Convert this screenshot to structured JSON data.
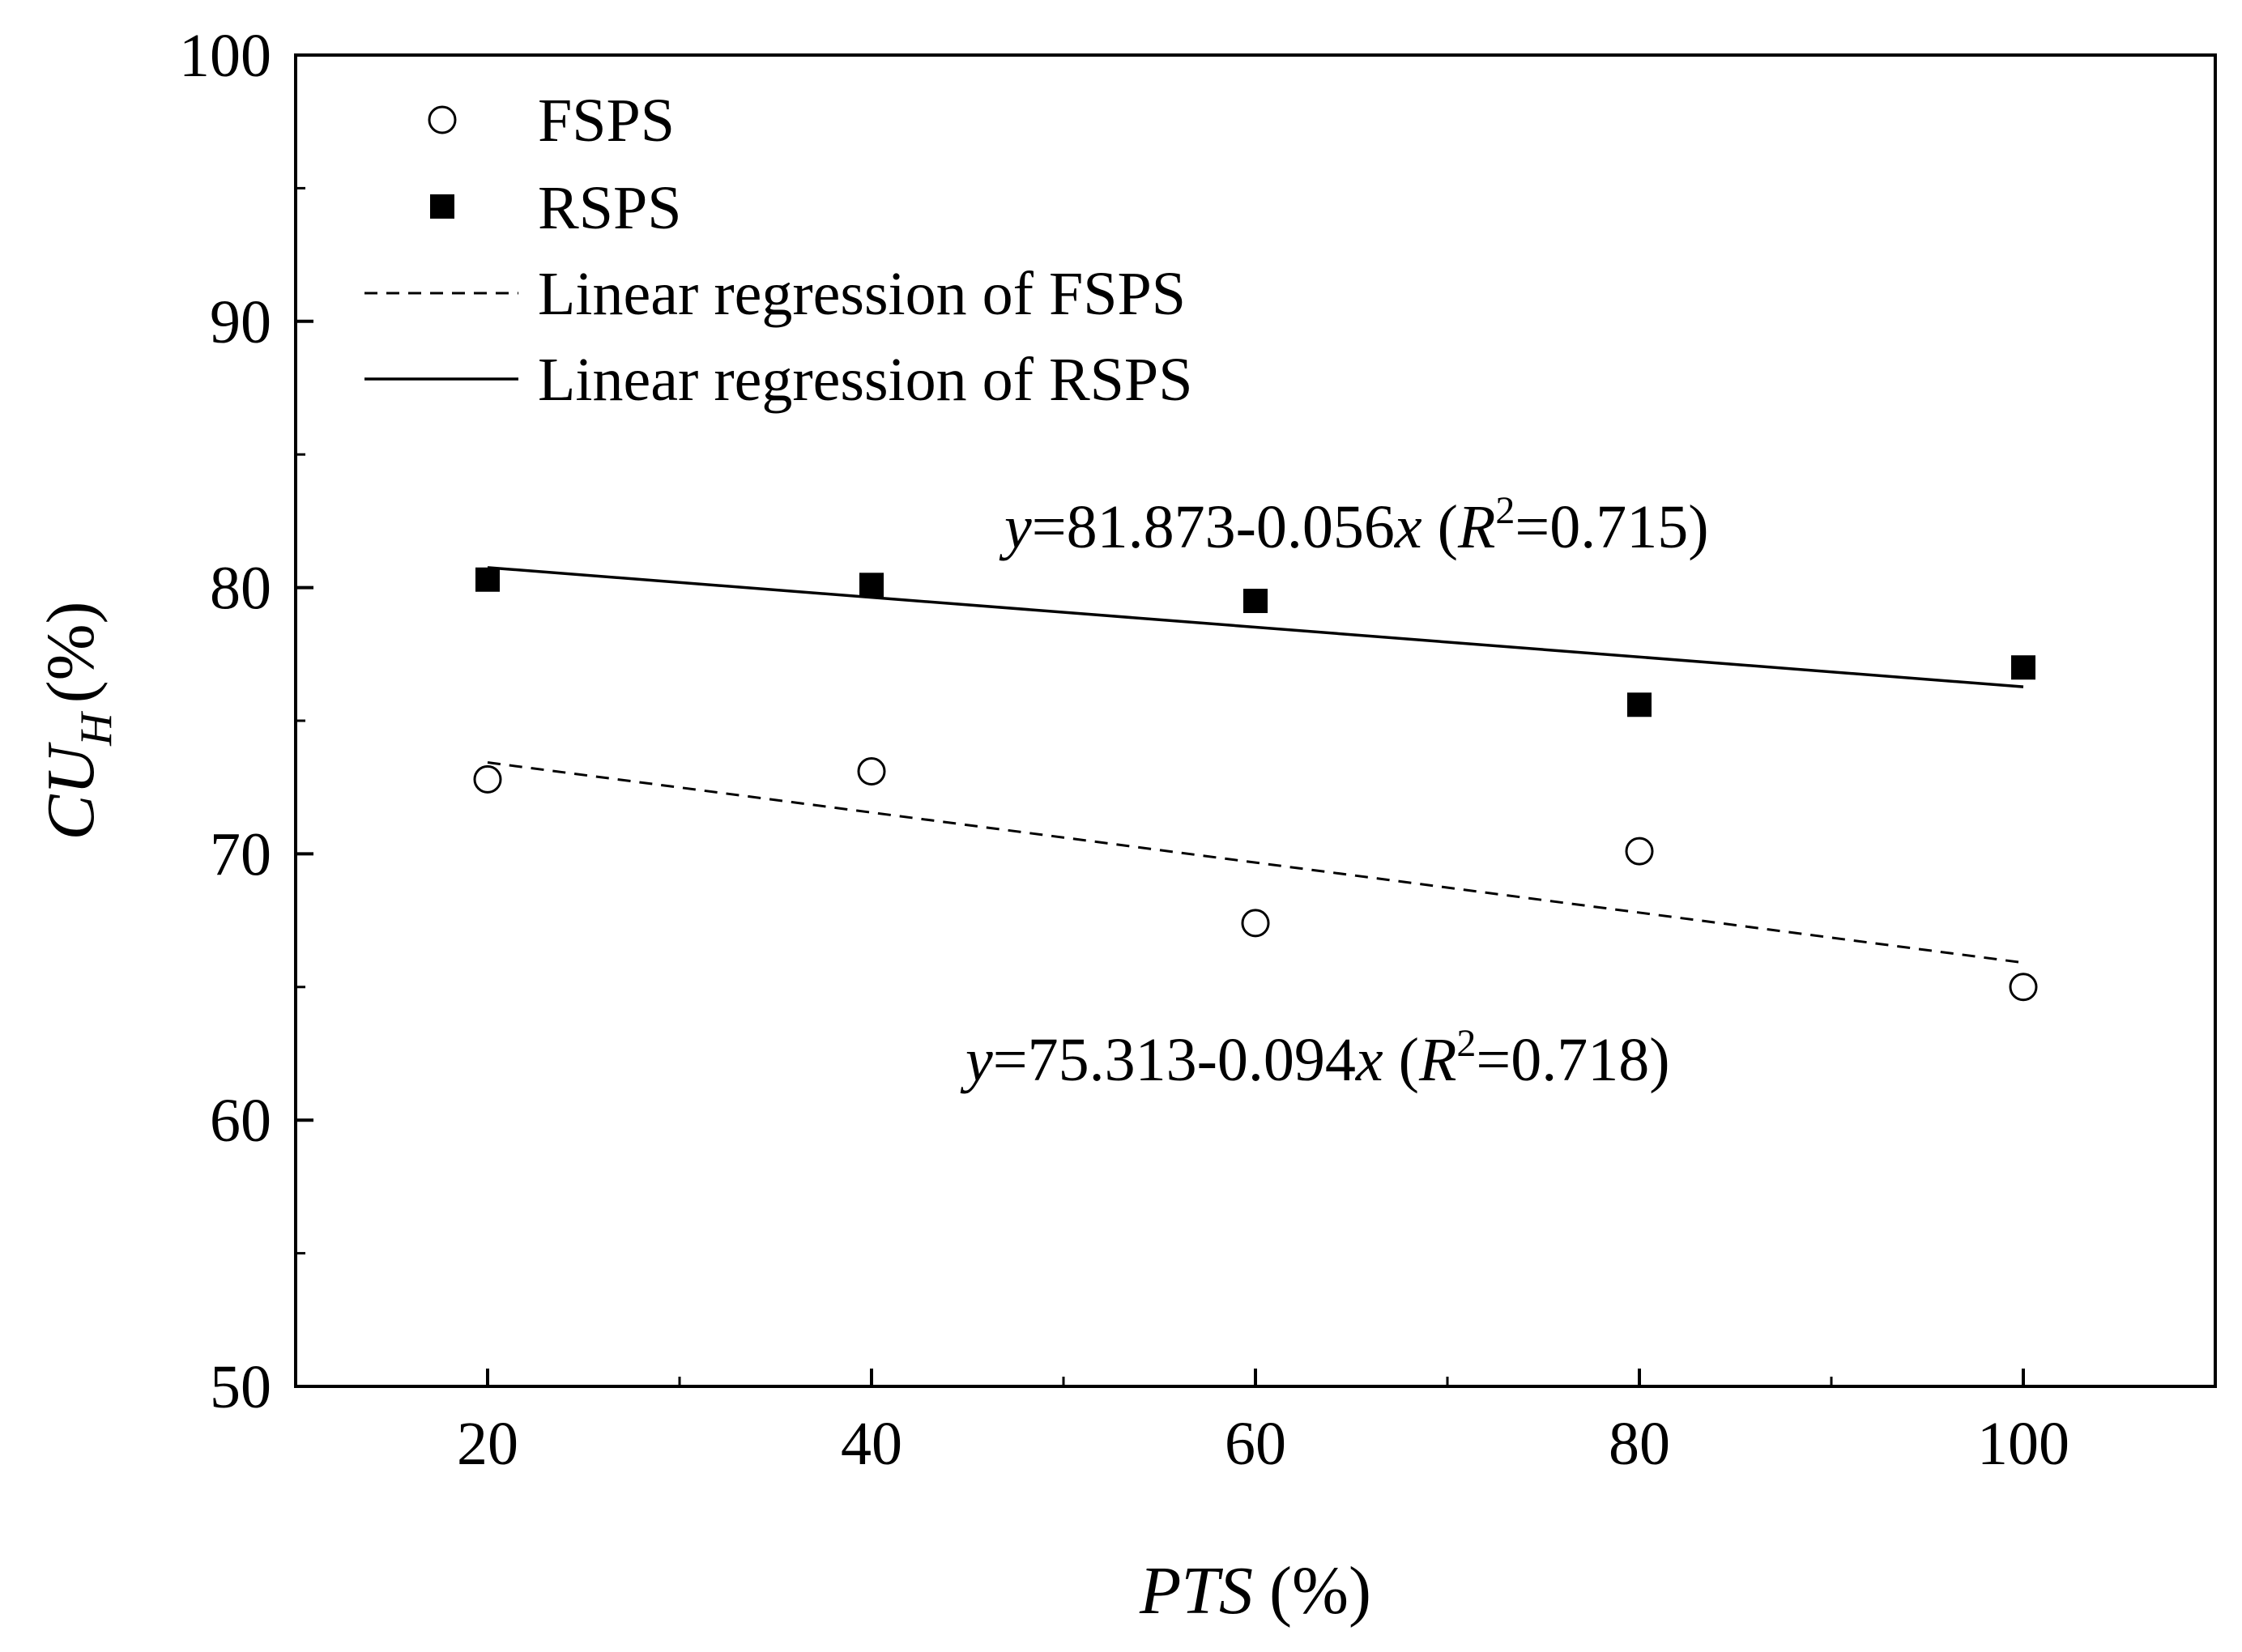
{
  "chart_data": {
    "type": "scatter",
    "xlabel_var": "PTS",
    "xlabel_unit": "(%)",
    "ylabel_var": "CU",
    "ylabel_sub": "H",
    "ylabel_unit": "(%)",
    "xlim": [
      10,
      110
    ],
    "ylim": [
      50,
      100
    ],
    "x_ticks": [
      20,
      40,
      60,
      80,
      100
    ],
    "y_ticks": [
      50,
      60,
      70,
      80,
      90,
      100
    ],
    "series": [
      {
        "name": "FSPS",
        "marker": "open-circle",
        "x": [
          20,
          40,
          60,
          80,
          100
        ],
        "y": [
          72.8,
          73.1,
          67.4,
          70.1,
          65.0
        ]
      },
      {
        "name": "RSPS",
        "marker": "filled-square",
        "x": [
          20,
          40,
          60,
          80,
          100
        ],
        "y": [
          80.3,
          80.1,
          79.5,
          75.6,
          77.0
        ]
      }
    ],
    "regressions": [
      {
        "name": "Linear regression of FSPS",
        "style": "dashed",
        "intercept": 75.313,
        "slope": -0.094,
        "x_range": [
          20,
          100
        ],
        "eq_lhs": "y",
        "eq_body": "=75.313-0.094",
        "eq_var": "x",
        "eq_r_open": " (",
        "eq_r": "R",
        "eq_sup": "2",
        "eq_r_val": "=0.718)"
      },
      {
        "name": "Linear regression of RSPS",
        "style": "solid",
        "intercept": 81.873,
        "slope": -0.056,
        "x_range": [
          20,
          100
        ],
        "eq_lhs": "y",
        "eq_body": "=81.873-0.056",
        "eq_var": "x",
        "eq_r_open": " (",
        "eq_r": "R",
        "eq_sup": "2",
        "eq_r_val": "=0.715)"
      }
    ],
    "legend_position": "top-left",
    "grid": false
  }
}
